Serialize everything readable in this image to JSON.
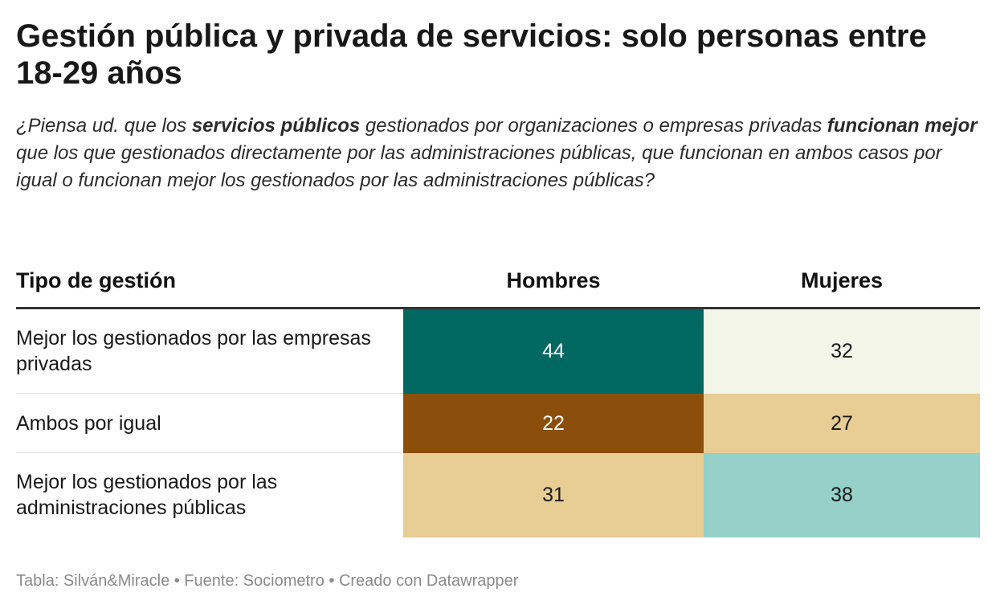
{
  "title": "Gestión pública y privada de servicios: solo personas entre 18-29 años",
  "subtitle": {
    "t1": "¿Piensa ud. que los ",
    "b1": "servicios públicos",
    "t2": " gestionados por organizaciones o empresas privadas ",
    "b2": "funcionan mejor",
    "t3": " que los que gestionados directamente por las administraciones públicas, que funcionan en ambos casos por igual o funcionan mejor los gestionados por las administraciones públicas?"
  },
  "chart_data": {
    "type": "table",
    "columns": [
      "Tipo de gestión",
      "Hombres",
      "Mujeres"
    ],
    "rows": [
      {
        "label": "Mejor los gestionados por las empresas privadas",
        "values": [
          44,
          32
        ],
        "colors": [
          "#006861",
          "#f4f6ea"
        ],
        "text_colors": [
          "#ffffff",
          "#181818"
        ]
      },
      {
        "label": "Ambos por igual",
        "values": [
          22,
          27
        ],
        "colors": [
          "#8b4f0b",
          "#e8cd95"
        ],
        "text_colors": [
          "#ffffff",
          "#181818"
        ]
      },
      {
        "label": "Mejor los gestionados por las administraciones públicas",
        "values": [
          31,
          38
        ],
        "colors": [
          "#e8cd95",
          "#95d0c9"
        ],
        "text_colors": [
          "#181818",
          "#181818"
        ]
      }
    ]
  },
  "footer": "Tabla: Silván&Miracle • Fuente: Sociometro • Creado con Datawrapper"
}
